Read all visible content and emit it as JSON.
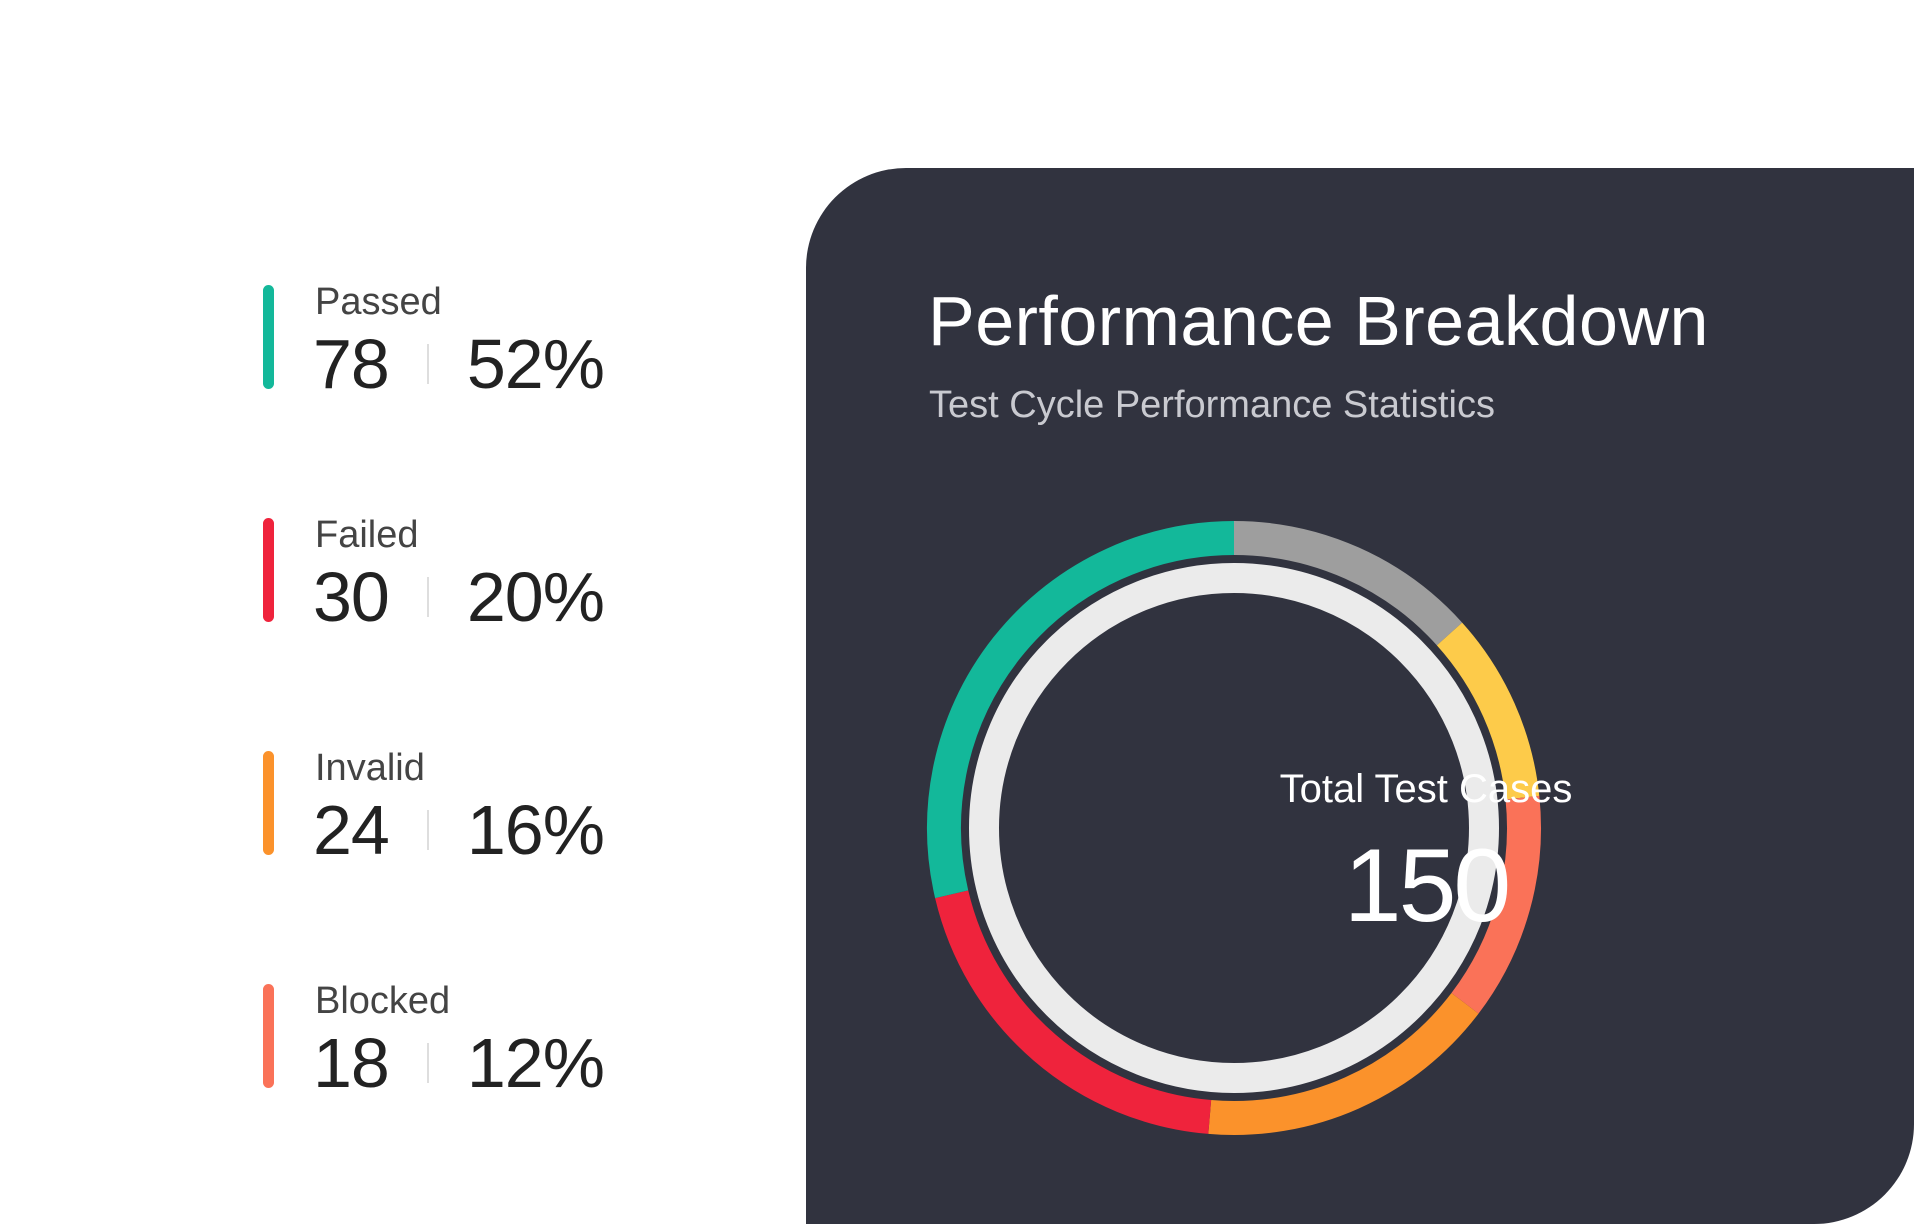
{
  "stats": [
    {
      "label": "Passed",
      "count": "78",
      "percent": "52%",
      "color": "#13b89a"
    },
    {
      "label": "Failed",
      "count": "30",
      "percent": "20%",
      "color": "#ef233c"
    },
    {
      "label": "Invalid",
      "count": "24",
      "percent": "16%",
      "color": "#fb922b"
    },
    {
      "label": "Blocked",
      "count": "18",
      "percent": "12%",
      "color": "#fa7258"
    }
  ],
  "card": {
    "title": "Performance Breakdown",
    "subtitle": "Test Cycle Performance Statistics",
    "center_label": "Total Test Cases",
    "center_value": "150"
  },
  "chart_data": {
    "type": "pie",
    "title": "Performance Breakdown",
    "subtitle": "Test Cycle Performance Statistics",
    "center_text": "Total Test Cases",
    "total": 150,
    "donut": true,
    "slices": [
      {
        "name": "unlabeled",
        "value": 20,
        "percent": 13,
        "color": "#9e9e9e"
      },
      {
        "name": "unlabeled",
        "value": 15,
        "percent": 10,
        "color": "#fdcb4a"
      },
      {
        "name": "Blocked",
        "value": 18,
        "percent": 12,
        "color": "#fa7258"
      },
      {
        "name": "Invalid",
        "value": 24,
        "percent": 16,
        "color": "#fb922b"
      },
      {
        "name": "Failed",
        "value": 30,
        "percent": 20,
        "color": "#ef233c"
      },
      {
        "name": "Passed",
        "value": 43,
        "percent": 29,
        "color": "#13b89a"
      }
    ],
    "inner_ring_color": "#ebebeb",
    "card_color": "#31333f"
  }
}
